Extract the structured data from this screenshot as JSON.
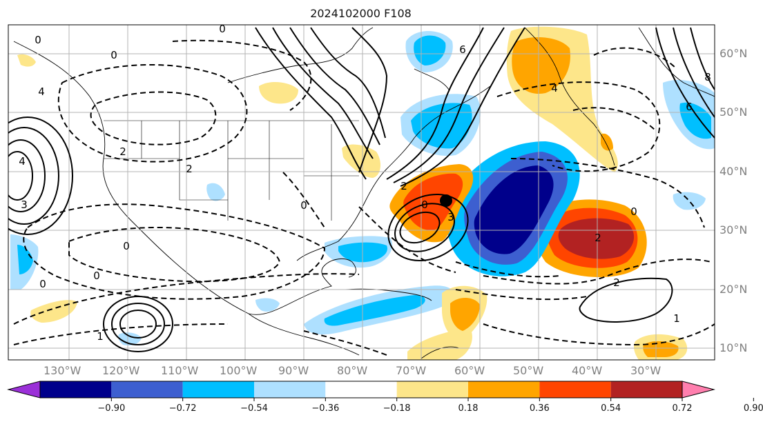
{
  "title": "2024102000 F108",
  "lon_labels": [
    "130°W",
    "120°W",
    "110°W",
    "100°W",
    "90°W",
    "80°W",
    "70°W",
    "60°W",
    "50°W",
    "40°W",
    "30°W"
  ],
  "lat_labels": [
    "60°N",
    "50°N",
    "40°N",
    "30°N",
    "20°N",
    "10°N"
  ],
  "colorbar": {
    "ticks": [
      "−0.90",
      "−0.72",
      "−0.54",
      "−0.36",
      "−0.18",
      "0.18",
      "0.36",
      "0.54",
      "0.72",
      "0.90"
    ],
    "colors": [
      "#9b30d8",
      "#00008b",
      "#3d5fd0",
      "#00bfff",
      "#aee0ff",
      "#ffffff",
      "#fde68a",
      "#ffa500",
      "#ff4500",
      "#b22222",
      "#ff7fae"
    ]
  },
  "contour_labels": [
    "0",
    "0",
    "0",
    "0",
    "0",
    "0",
    "0",
    "0",
    "0",
    "1",
    "1",
    "2",
    "2",
    "2",
    "2",
    "2",
    "3",
    "3",
    "4",
    "4",
    "4",
    "6",
    "6",
    "8"
  ],
  "marker": "storm-center-dot"
}
